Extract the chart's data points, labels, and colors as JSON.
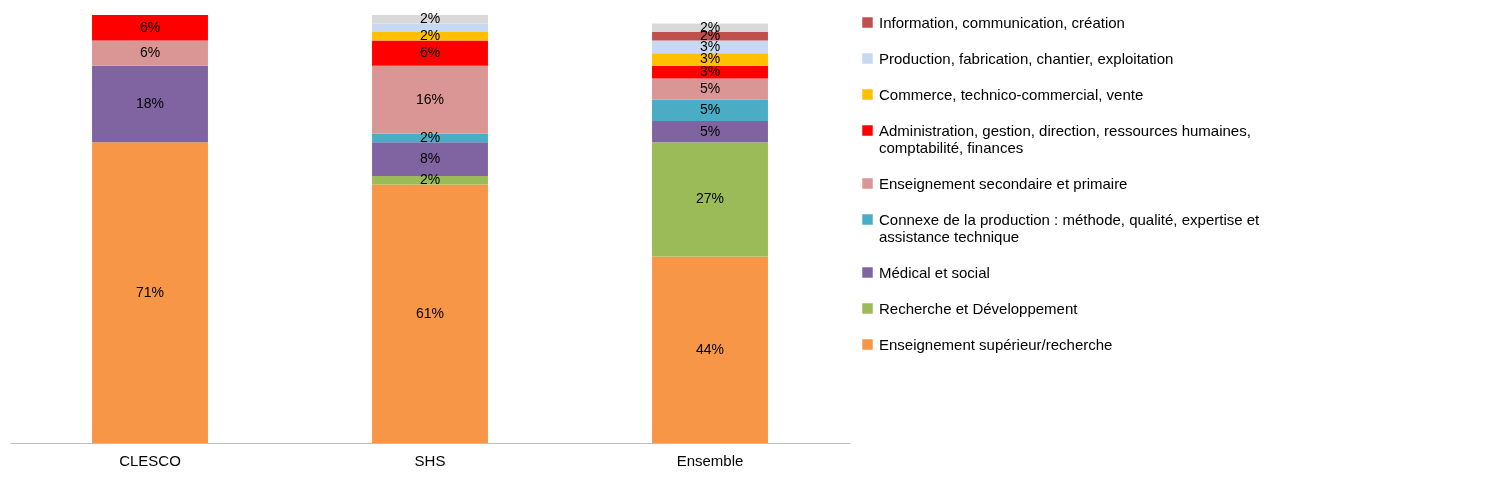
{
  "chart_data": {
    "type": "bar",
    "stacked": true,
    "categories": [
      "CLESCO",
      "SHS",
      "Ensemble"
    ],
    "legend": "right",
    "tick_labels": "x",
    "grid": false,
    "series": [
      {
        "name": "Enseignement supérieur/recherche",
        "color": "#f79646",
        "values": [
          71,
          61,
          44
        ],
        "value_labels": [
          "71%",
          "61%",
          "44%"
        ]
      },
      {
        "name": "Recherche et Développement",
        "color": "#9bbb59",
        "values": [
          null,
          2,
          27
        ],
        "value_labels": [
          null,
          "2%",
          "27%"
        ]
      },
      {
        "name": "Médical et social",
        "color": "#8064a2",
        "values": [
          18,
          8,
          5
        ],
        "value_labels": [
          "18%",
          "8%",
          "5%"
        ]
      },
      {
        "name": "Connexe de la production : méthode, qualité, expertise et assistance technique",
        "color": "#4bacc6",
        "values": [
          null,
          2,
          5
        ],
        "value_labels": [
          null,
          "2%",
          "5%"
        ]
      },
      {
        "name": "Enseignement secondaire et primaire",
        "color": "#da9694",
        "values": [
          6,
          16,
          5
        ],
        "value_labels": [
          "6%",
          "16%",
          "5%"
        ]
      },
      {
        "name": "Administration, gestion, direction, ressources humaines, comptabilité, finances",
        "color": "#ff0000",
        "values": [
          6,
          6,
          3
        ],
        "value_labels": [
          "6%",
          "6%",
          "3%"
        ]
      },
      {
        "name": "Commerce, technico-commercial, vente",
        "color": "#ffc000",
        "values": [
          null,
          2,
          3
        ],
        "value_labels": [
          null,
          "2%",
          "3%"
        ]
      },
      {
        "name": "Production, fabrication, chantier, exploitation",
        "color": "#c6d9f1",
        "values": [
          null,
          2,
          3
        ],
        "value_labels": [
          null,
          null,
          "3%"
        ]
      },
      {
        "name": "Information, communication, création",
        "color": "#c0504d",
        "values": [
          null,
          null,
          2
        ],
        "value_labels": [
          null,
          null,
          "2%"
        ]
      },
      {
        "color": "#d9d9d9",
        "values": [
          null,
          2,
          2
        ],
        "value_labels": [
          null,
          "2%",
          "2%"
        ]
      }
    ]
  }
}
